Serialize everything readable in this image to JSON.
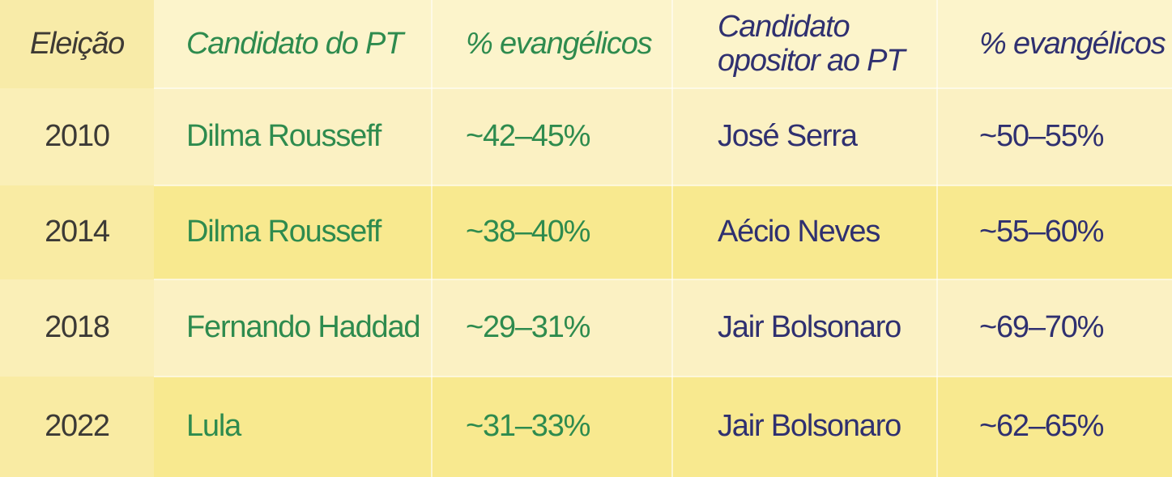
{
  "table": {
    "headers": [
      "Eleição",
      "Candidato do PT",
      "% evangélicos",
      "Candidato opositor ao PT",
      "% evangélicos"
    ],
    "rows": [
      [
        "2010",
        "Dilma Rousseff",
        "~42–45%",
        "José Serra",
        "~50–55%"
      ],
      [
        "2014",
        "Dilma Rousseff",
        "~38–40%",
        "Aécio Neves",
        "~55–60%"
      ],
      [
        "2018",
        "Fernando Haddad",
        "~29–31%",
        "Jair Bolsonaro",
        "~69–70%"
      ],
      [
        "2022",
        "Lula",
        "~31–33%",
        "Jair Bolsonaro",
        "~62–65%"
      ]
    ]
  },
  "colors": {
    "pt_green": "#2E8B4E",
    "opposition_navy": "#2F3070",
    "year_text": "#3C3A36",
    "light_row": "#FBF1C3",
    "dark_row": "#F8E98F"
  }
}
